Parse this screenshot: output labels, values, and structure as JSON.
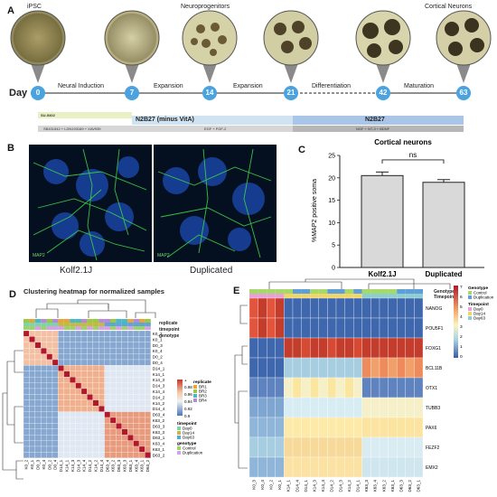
{
  "panel_a": {
    "letter": "A",
    "stage_labels": {
      "ipsc": "iPSC",
      "neuroprogenitors": "Neuroprogenitors",
      "cortical": "Cortical Neurons"
    },
    "day_label": "Day",
    "days": [
      "0",
      "7",
      "14",
      "21",
      "42",
      "63"
    ],
    "phases": [
      "Neural Induction",
      "Expansion",
      "Expansion",
      "Differentiation",
      "Maturation"
    ],
    "media": {
      "su": "SU-5402",
      "inducers": "SB431542 + LDN193189 + XAV939",
      "n2b27_minus": "N2B27 (minus VitA)",
      "egf": "EGF + FGF-2",
      "n2b27": "N2B27",
      "ngf": "NGF + NT-3 + BDNF"
    },
    "colors": {
      "timeline_dot": "#4aa3df",
      "media_bar": "#cfe3f2",
      "media_bar_dark": "#a9c6e8",
      "su_bar": "#e8f1c4"
    }
  },
  "panel_b": {
    "letter": "B",
    "stain": "MAP2",
    "captions": [
      "Kolf2.1J",
      "Duplicated"
    ]
  },
  "panel_c": {
    "letter": "C",
    "title": "Cortical neurons",
    "ylabel": "%MAP2 positive soma",
    "sig": "ns",
    "yticks": [
      "0",
      "5",
      "10",
      "15",
      "20",
      "25"
    ]
  },
  "chart_data": [
    {
      "type": "bar",
      "title": "Cortical neurons",
      "ylabel": "%MAP2 positive soma",
      "categories": [
        "Kolf2.1J",
        "Duplicated"
      ],
      "values": [
        20.5,
        19.0
      ],
      "errors": [
        0.8,
        0.6
      ],
      "ylim": [
        0,
        25
      ],
      "annotation": "ns"
    }
  ],
  "panel_d": {
    "letter": "D",
    "title": "Clustering heatmap for normalized samples",
    "track_labels": [
      "replicate",
      "timepoint",
      "genotype"
    ],
    "samples": [
      "K0_2",
      "K0_1",
      "D0_3",
      "K0_4",
      "D0_2",
      "D0_4",
      "D14_1",
      "K14_1",
      "K14_3",
      "D14_3",
      "K14_4",
      "D14_2",
      "K14_2",
      "D14_4",
      "D63_4",
      "K63_2",
      "D63_3",
      "K63_3",
      "D63_1",
      "K63_4",
      "K63_1",
      "D63_2"
    ],
    "scale_ticks": [
      "1",
      "0.98",
      "0.96",
      "0.94",
      "0.92",
      "0.9"
    ],
    "legend": {
      "replicate_title": "replicate",
      "replicates": [
        "BR1",
        "BR2",
        "BR3",
        "BR4"
      ],
      "timepoint_title": "timepoint",
      "timepoints": [
        "Day0",
        "Day14",
        "Day63"
      ],
      "genotype_title": "genotype",
      "genotypes": [
        "Control",
        "Duplication"
      ]
    },
    "colors": {
      "replicate": [
        "#e8a43a",
        "#9bc93f",
        "#4bb8c5",
        "#b689d9"
      ],
      "timepoint": [
        "#7ed3a9",
        "#c3b945",
        "#5da7d4"
      ],
      "genotype": [
        "#9ed36a",
        "#d9a0e8"
      ]
    }
  },
  "panel_e": {
    "letter": "E",
    "track_labels": [
      "Genotype",
      "Timepoint"
    ],
    "genes": [
      "NANOG",
      "POU5F1",
      "FOXG1",
      "BCL11B",
      "OTX1",
      "TUBB3",
      "PAX6",
      "FEZF2",
      "EMX2"
    ],
    "samples": [
      "K0_3",
      "K0_4",
      "K0_2",
      "K0_1",
      "K14_1",
      "D14_4",
      "D14_1",
      "K14_3",
      "K14_4",
      "D14_2",
      "D14_3",
      "K14_2",
      "D14_1",
      "K63_3",
      "K63_4",
      "K63_2",
      "K63_1",
      "D63_3",
      "D63_2",
      "D63_1"
    ],
    "scale_ticks": [
      "7",
      "6",
      "5",
      "4",
      "3",
      "2",
      "1",
      "0"
    ],
    "legend": {
      "genotype_title": "Genotype",
      "genotypes": [
        "Control",
        "Duplication"
      ],
      "timepoint_title": "Timepoint",
      "timepoints": [
        "Day0",
        "Day14",
        "Day63"
      ]
    },
    "colors": {
      "genotype": [
        "#a6d96a",
        "#5e9fd9"
      ],
      "timepoint": [
        "#e7a0d8",
        "#f0d56a",
        "#8ecdd0"
      ]
    }
  }
}
